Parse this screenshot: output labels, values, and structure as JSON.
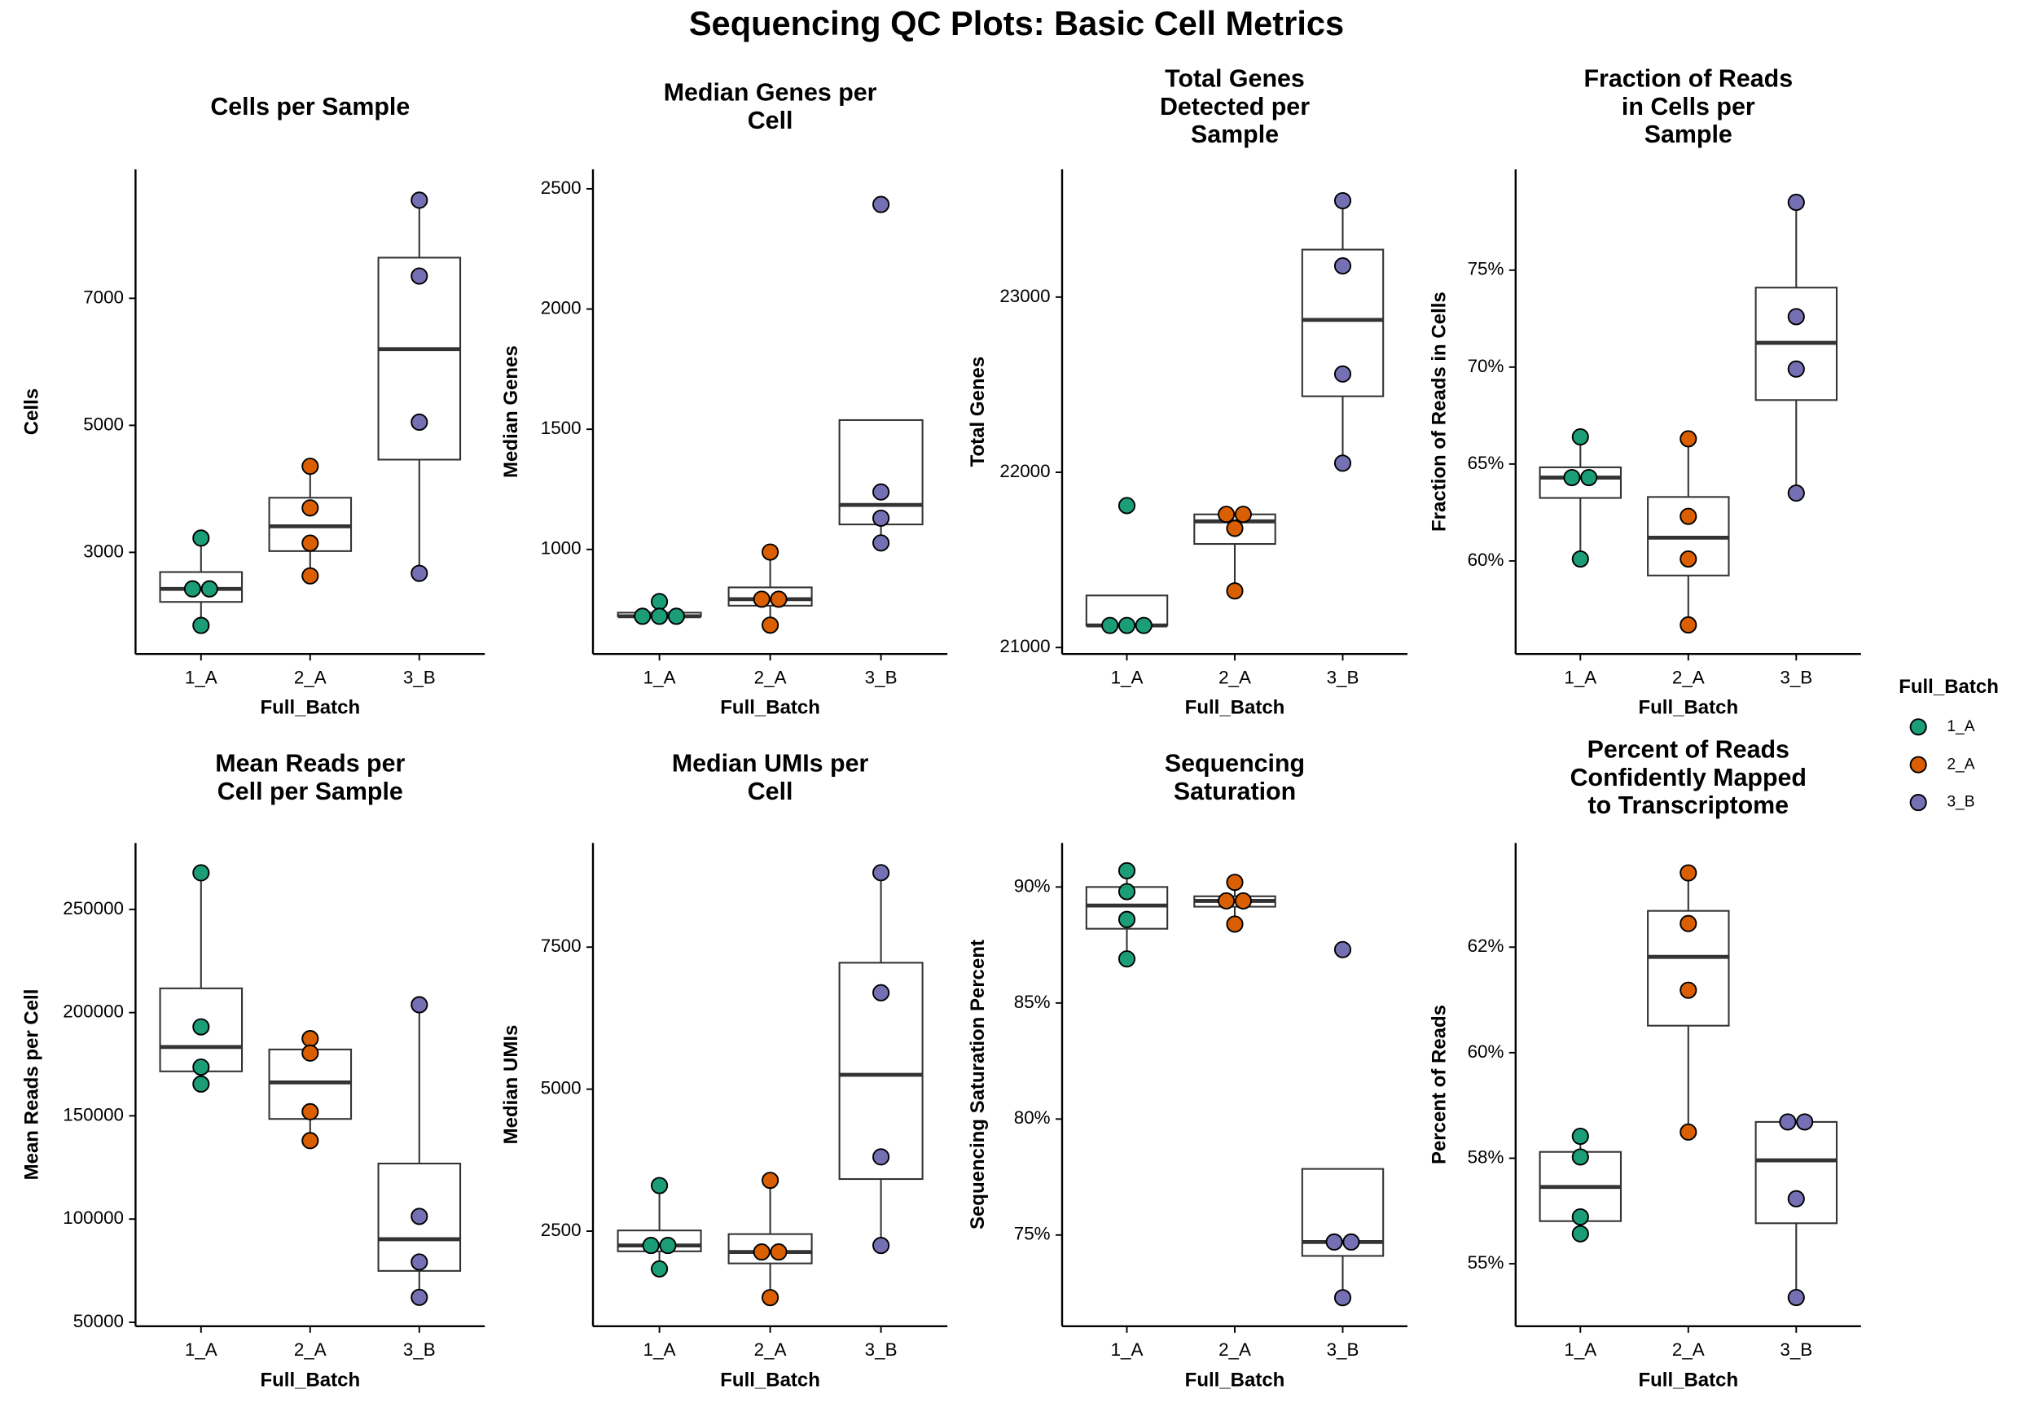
{
  "title": "Sequencing QC Plots: Basic Cell Metrics",
  "legend": {
    "title": "Full_Batch",
    "entries": [
      {
        "name": "1_A",
        "color": "#1b9e77"
      },
      {
        "name": "2_A",
        "color": "#d95f02"
      },
      {
        "name": "3_B",
        "color": "#7570b3"
      }
    ]
  },
  "chart_data": [
    {
      "type": "box",
      "title": [
        "Cells per Sample"
      ],
      "x_label": "Full_Batch",
      "y_label": "Cells",
      "categories": [
        "1_A",
        "2_A",
        "3_B"
      ],
      "colors": [
        "#1b9e77",
        "#d95f02",
        "#7570b3"
      ],
      "ylim": [
        1400,
        9030
      ],
      "yticks": [
        3000,
        5000,
        7000
      ],
      "boxes": [
        {
          "low": 1850,
          "q1": 2220,
          "median": 2425,
          "q3": 2690,
          "high": 3225
        },
        {
          "low": 2630,
          "q1": 3020,
          "median": 3410,
          "q3": 3860,
          "high": 4355
        },
        {
          "low": 2670,
          "q1": 4460,
          "median": 6200,
          "q3": 7640,
          "high": 8545
        }
      ],
      "points": [
        [
          3225,
          2425,
          2425,
          1850
        ],
        [
          4355,
          3700,
          3145,
          2630
        ],
        [
          8545,
          7350,
          5050,
          2670
        ]
      ]
    },
    {
      "type": "box",
      "title": [
        "Median Genes per",
        "Cell"
      ],
      "x_label": "Full_Batch",
      "y_label": "Median Genes",
      "categories": [
        "1_A",
        "2_A",
        "3_B"
      ],
      "colors": [
        "#1b9e77",
        "#d95f02",
        "#7570b3"
      ],
      "ylim": [
        565,
        2581
      ],
      "yticks": [
        1000,
        1500,
        2000,
        2500
      ],
      "boxes": [
        {
          "low": 722,
          "q1": 722,
          "median": 722,
          "q3": 737,
          "high": 783
        },
        {
          "low": 685,
          "q1": 766,
          "median": 793,
          "q3": 842,
          "high": 989
        },
        {
          "low": 1027,
          "q1": 1104,
          "median": 1185,
          "q3": 1538,
          "high": 1538
        }
      ],
      "points": [
        [
          783,
          722,
          722,
          722
        ],
        [
          989,
          793,
          793,
          685
        ],
        [
          2435,
          1239,
          1130,
          1027
        ]
      ]
    },
    {
      "type": "box",
      "title": [
        "Total Genes",
        "Detected per",
        "Sample"
      ],
      "x_label": "Full_Batch",
      "y_label": "Total Genes",
      "categories": [
        "1_A",
        "2_A",
        "3_B"
      ],
      "colors": [
        "#1b9e77",
        "#d95f02",
        "#7570b3"
      ],
      "ylim": [
        20963,
        23729
      ],
      "yticks": [
        21000,
        22000,
        23000
      ],
      "boxes": [
        {
          "low": 21126,
          "q1": 21126,
          "median": 21126,
          "q3": 21297,
          "high": 21297
        },
        {
          "low": 21323,
          "q1": 21591,
          "median": 21720,
          "q3": 21760,
          "high": 21760
        },
        {
          "low": 22052,
          "q1": 22434,
          "median": 22870,
          "q3": 23271,
          "high": 23550
        }
      ],
      "points": [
        [
          21810,
          21126,
          21126,
          21126
        ],
        [
          21760,
          21760,
          21680,
          21323
        ],
        [
          23550,
          23178,
          22561,
          22052
        ]
      ]
    },
    {
      "type": "box",
      "title": [
        "Fraction of Reads",
        "in Cells per",
        "Sample"
      ],
      "x_label": "Full_Batch",
      "y_label": "Fraction of Reads in Cells",
      "categories": [
        "1_A",
        "2_A",
        "3_B"
      ],
      "colors": [
        "#1b9e77",
        "#d95f02",
        "#7570b3"
      ],
      "ylim": [
        55.2,
        80.2
      ],
      "yticks": [
        {
          "value": 60,
          "label": "60%"
        },
        {
          "value": 65,
          "label": "65%"
        },
        {
          "value": 70,
          "label": "70%"
        },
        {
          "value": 75,
          "label": "75%"
        }
      ],
      "boxes": [
        {
          "low": 60.1,
          "q1": 63.25,
          "median": 64.3,
          "q3": 64.83,
          "high": 66.4
        },
        {
          "low": 56.7,
          "q1": 59.25,
          "median": 61.2,
          "q3": 63.3,
          "high": 66.3
        },
        {
          "low": 63.5,
          "q1": 68.3,
          "median": 71.25,
          "q3": 74.1,
          "high": 78.5
        }
      ],
      "points": [
        [
          66.4,
          64.3,
          64.3,
          60.1
        ],
        [
          66.3,
          62.3,
          60.1,
          56.7
        ],
        [
          78.5,
          72.6,
          69.9,
          63.5
        ]
      ]
    },
    {
      "type": "box",
      "title": [
        "Mean Reads per",
        "Cell per Sample"
      ],
      "x_label": "Full_Batch",
      "y_label": "Mean Reads per Cell",
      "categories": [
        "1_A",
        "2_A",
        "3_B"
      ],
      "colors": [
        "#1b9e77",
        "#d95f02",
        "#7570b3"
      ],
      "ylim": [
        48100,
        282200
      ],
      "yticks": [
        50000,
        100000,
        150000,
        200000,
        250000
      ],
      "boxes": [
        {
          "low": 165400,
          "q1": 171550,
          "median": 183350,
          "q3": 211750,
          "high": 267700
        },
        {
          "low": 138000,
          "q1": 148500,
          "median": 166200,
          "q3": 182150,
          "high": 187400
        },
        {
          "low": 62100,
          "q1": 74900,
          "median": 90250,
          "q3": 126900,
          "high": 203800
        }
      ],
      "points": [
        [
          267700,
          193100,
          173600,
          165400
        ],
        [
          187400,
          180400,
          152000,
          138000
        ],
        [
          203800,
          101300,
          79200,
          62100
        ]
      ]
    },
    {
      "type": "box",
      "title": [
        "Median UMIs per",
        "Cell"
      ],
      "x_label": "Full_Batch",
      "y_label": "Median UMIs",
      "categories": [
        "1_A",
        "2_A",
        "3_B"
      ],
      "colors": [
        "#1b9e77",
        "#d95f02",
        "#7570b3"
      ],
      "ylim": [
        826,
        9335
      ],
      "yticks": [
        2500,
        5000,
        7500
      ],
      "boxes": [
        {
          "low": 1835,
          "q1": 2145,
          "median": 2248,
          "q3": 2512,
          "high": 3303
        },
        {
          "low": 1330,
          "q1": 1932,
          "median": 2133,
          "q3": 2448,
          "high": 3394
        },
        {
          "low": 2248,
          "q1": 3417,
          "median": 5252,
          "q3": 7225,
          "high": 8810
        }
      ],
      "points": [
        [
          3303,
          2248,
          2248,
          1835
        ],
        [
          3394,
          2133,
          2133,
          1330
        ],
        [
          8810,
          6697,
          3807,
          2248
        ]
      ]
    },
    {
      "type": "box",
      "title": [
        "Sequencing",
        "Saturation"
      ],
      "x_label": "Full_Batch",
      "y_label": "Sequencing Saturation Percent",
      "categories": [
        "1_A",
        "2_A",
        "3_B"
      ],
      "colors": [
        "#1b9e77",
        "#d95f02",
        "#7570b3"
      ],
      "ylim": [
        71.07,
        91.9
      ],
      "yticks": [
        {
          "value": 75,
          "label": "75%"
        },
        {
          "value": 80,
          "label": "80%"
        },
        {
          "value": 85,
          "label": "85%"
        },
        {
          "value": 90,
          "label": "90%"
        }
      ],
      "boxes": [
        {
          "low": 86.9,
          "q1": 88.2,
          "median": 89.2,
          "q3": 90.0,
          "high": 90.7
        },
        {
          "low": 88.4,
          "q1": 89.15,
          "median": 89.4,
          "q3": 89.6,
          "high": 90.2
        },
        {
          "low": 72.3,
          "q1": 74.1,
          "median": 74.7,
          "q3": 77.85,
          "high": 77.85
        }
      ],
      "points": [
        [
          90.7,
          89.8,
          88.6,
          86.9
        ],
        [
          90.2,
          89.4,
          89.4,
          88.4
        ],
        [
          87.3,
          74.7,
          74.7,
          72.3
        ]
      ]
    },
    {
      "type": "box",
      "title": [
        "Percent of Reads",
        "Confidently Mapped",
        "to Transcriptome"
      ],
      "x_label": "Full_Batch",
      "y_label": "Percent of Reads",
      "categories": [
        "1_A",
        "2_A",
        "3_B"
      ],
      "colors": [
        "#1b9e77",
        "#d95f02",
        "#7570b3"
      ],
      "ylim": [
        53.52,
        64.97
      ],
      "yticks": [
        {
          "value": 55,
          "label": "55%"
        },
        {
          "value": 57.5,
          "label": "58%"
        },
        {
          "value": 60,
          "label": "60%"
        },
        {
          "value": 62.5,
          "label": "62%"
        }
      ],
      "boxes": [
        {
          "low": 55.71,
          "q1": 56.01,
          "median": 56.82,
          "q3": 57.65,
          "high": 58.02
        },
        {
          "low": 58.12,
          "q1": 60.64,
          "median": 62.27,
          "q3": 63.36,
          "high": 64.26
        },
        {
          "low": 54.2,
          "q1": 55.96,
          "median": 57.45,
          "q3": 58.36,
          "high": 58.36
        }
      ],
      "points": [
        [
          58.02,
          57.53,
          56.11,
          55.71
        ],
        [
          64.26,
          63.06,
          61.48,
          58.12
        ],
        [
          58.36,
          58.36,
          56.54,
          54.2
        ]
      ]
    }
  ]
}
